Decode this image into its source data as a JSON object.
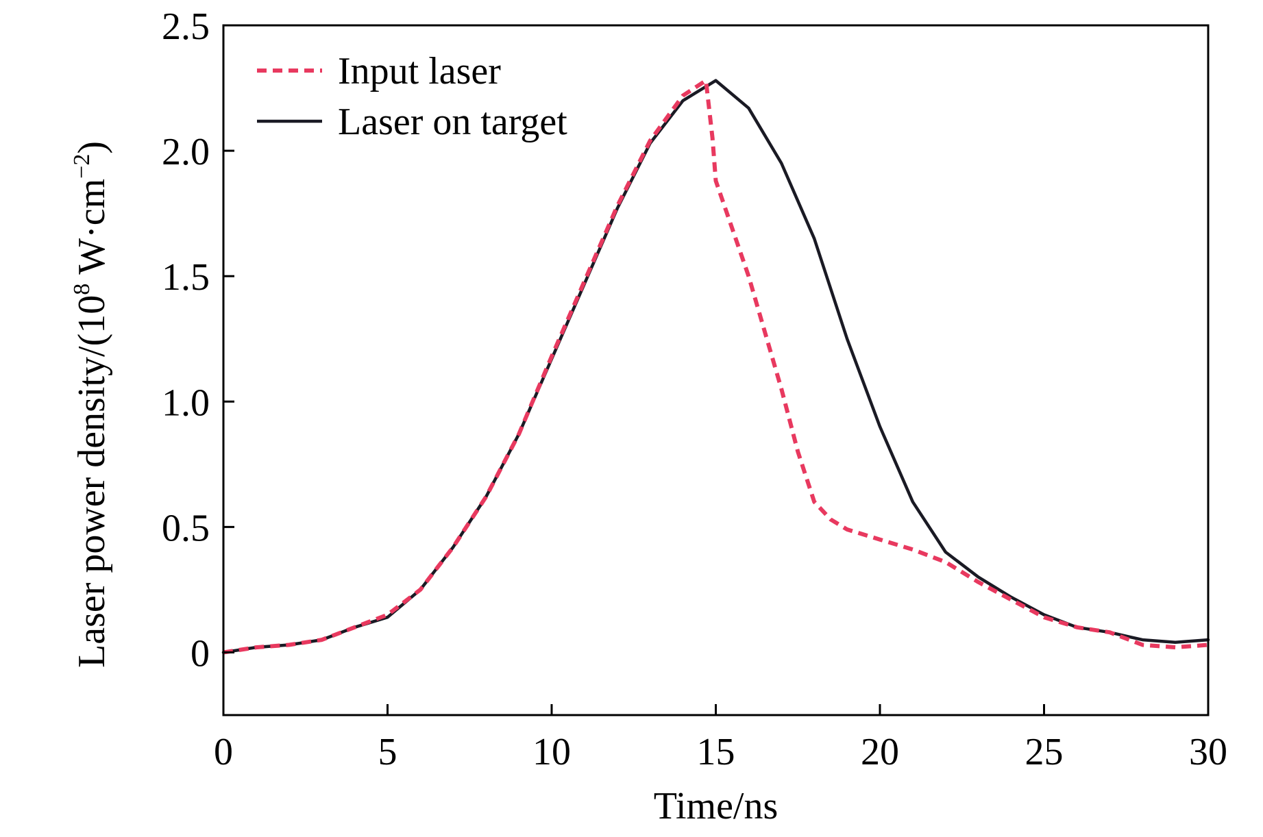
{
  "chart_data": {
    "type": "line",
    "title": "",
    "xlabel": "Time/ns",
    "ylabel_text": "Laser power density/(10",
    "ylabel_exp": "8",
    "ylabel_unit": " W·cm",
    "ylabel_unit_exp": "−2",
    "ylabel_close": ")",
    "xlim": [
      0,
      30
    ],
    "ylim": [
      -0.25,
      2.5
    ],
    "xticks": [
      0,
      5,
      10,
      15,
      20,
      25,
      30
    ],
    "xtick_labels": [
      "0",
      "5",
      "10",
      "15",
      "20",
      "25",
      "30"
    ],
    "yticks": [
      0,
      0.5,
      1.0,
      1.5,
      2.0,
      2.5
    ],
    "ytick_labels": [
      "0",
      "0.5",
      "1.0",
      "1.5",
      "2.0",
      "2.5"
    ],
    "grid": false,
    "legend_position": "top-left",
    "series": [
      {
        "name": "Input laser",
        "color": "#e8395f",
        "style": "dashed",
        "points": [
          [
            0,
            0.0
          ],
          [
            1,
            0.02
          ],
          [
            2,
            0.03
          ],
          [
            3,
            0.05
          ],
          [
            4,
            0.1
          ],
          [
            5,
            0.15
          ],
          [
            6,
            0.25
          ],
          [
            7,
            0.42
          ],
          [
            8,
            0.62
          ],
          [
            9,
            0.87
          ],
          [
            10,
            1.18
          ],
          [
            11,
            1.48
          ],
          [
            12,
            1.78
          ],
          [
            13,
            2.04
          ],
          [
            14,
            2.22
          ],
          [
            14.7,
            2.28
          ],
          [
            14.9,
            2.05
          ],
          [
            15,
            1.88
          ],
          [
            16,
            1.5
          ],
          [
            17,
            1.05
          ],
          [
            17.5,
            0.8
          ],
          [
            18,
            0.6
          ],
          [
            18.5,
            0.53
          ],
          [
            19,
            0.49
          ],
          [
            20,
            0.45
          ],
          [
            21,
            0.41
          ],
          [
            22,
            0.36
          ],
          [
            23,
            0.28
          ],
          [
            24,
            0.21
          ],
          [
            25,
            0.14
          ],
          [
            26,
            0.1
          ],
          [
            27,
            0.08
          ],
          [
            28,
            0.03
          ],
          [
            29,
            0.02
          ],
          [
            30,
            0.03
          ]
        ]
      },
      {
        "name": "Laser on target",
        "color": "#1a1a24",
        "style": "solid",
        "points": [
          [
            0,
            0.0
          ],
          [
            1,
            0.02
          ],
          [
            2,
            0.03
          ],
          [
            3,
            0.05
          ],
          [
            4,
            0.1
          ],
          [
            5,
            0.14
          ],
          [
            6,
            0.25
          ],
          [
            7,
            0.42
          ],
          [
            8,
            0.62
          ],
          [
            9,
            0.87
          ],
          [
            10,
            1.17
          ],
          [
            11,
            1.47
          ],
          [
            12,
            1.77
          ],
          [
            13,
            2.03
          ],
          [
            14,
            2.2
          ],
          [
            15,
            2.28
          ],
          [
            16,
            2.17
          ],
          [
            17,
            1.95
          ],
          [
            18,
            1.65
          ],
          [
            19,
            1.25
          ],
          [
            20,
            0.9
          ],
          [
            21,
            0.6
          ],
          [
            22,
            0.4
          ],
          [
            23,
            0.3
          ],
          [
            24,
            0.22
          ],
          [
            25,
            0.15
          ],
          [
            26,
            0.1
          ],
          [
            27,
            0.08
          ],
          [
            28,
            0.05
          ],
          [
            29,
            0.04
          ],
          [
            30,
            0.05
          ]
        ]
      }
    ]
  }
}
